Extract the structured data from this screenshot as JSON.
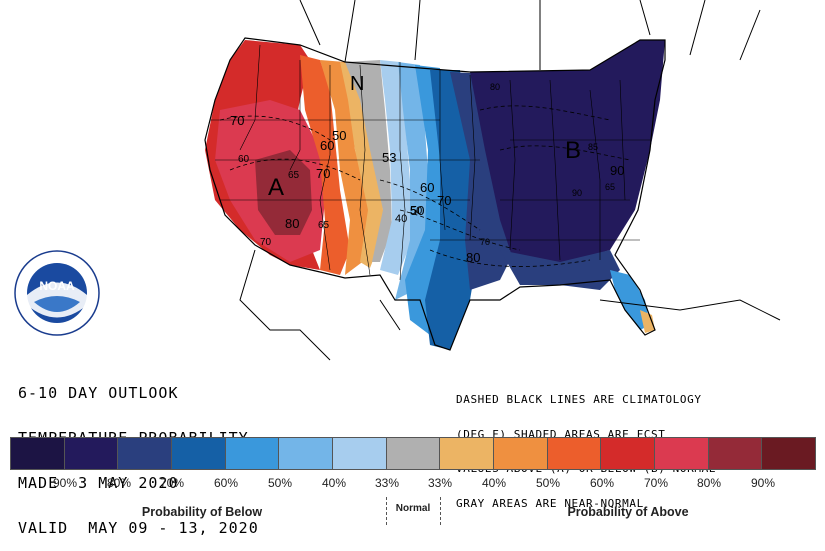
{
  "map": {
    "region_letters": {
      "above": "A",
      "below": "B",
      "normal": "N"
    },
    "contour_labels": [
      "70",
      "60",
      "65",
      "80",
      "65",
      "50",
      "60",
      "70",
      "70",
      "50",
      "53",
      "60",
      "40",
      "50",
      "70",
      "70",
      "80",
      "90",
      "80",
      "85",
      "90",
      "65"
    ],
    "colors": {
      "ocean": "#ffffff",
      "land_outside": "#ffffff",
      "border": "#000000"
    }
  },
  "logo": {
    "text": "NOAA"
  },
  "title_lines": [
    "6-10 DAY OUTLOOK",
    "TEMPERATURE PROBABILITY",
    "MADE  3 MAY 2020",
    "VALID  MAY 09 - 13, 2020"
  ],
  "note_lines": [
    "DASHED BLACK LINES ARE CLIMATOLOGY",
    "(DEG F) SHADED AREAS ARE FCST",
    "VALUES ABOVE (A) OR BELOW (B) NORMAL",
    "GRAY AREAS ARE NEAR-NORMAL"
  ],
  "legend": {
    "swatches": [
      "#1c1444",
      "#231a5c",
      "#2a3f7e",
      "#1560a6",
      "#3a98dc",
      "#73b5e8",
      "#a7cdee",
      "#b0b0b0",
      "#ecb464",
      "#ef9040",
      "#ec5e2c",
      "#d42b2a",
      "#db3a50",
      "#942a38",
      "#6a1a22"
    ],
    "below_labels": [
      "90%",
      "80%",
      "70%",
      "60%",
      "50%",
      "40%",
      "33%"
    ],
    "above_labels": [
      "33%",
      "40%",
      "50%",
      "60%",
      "70%",
      "80%",
      "90%"
    ],
    "caption_below": "Probability of Below",
    "caption_normal": "Normal",
    "caption_above": "Probability of Above"
  }
}
